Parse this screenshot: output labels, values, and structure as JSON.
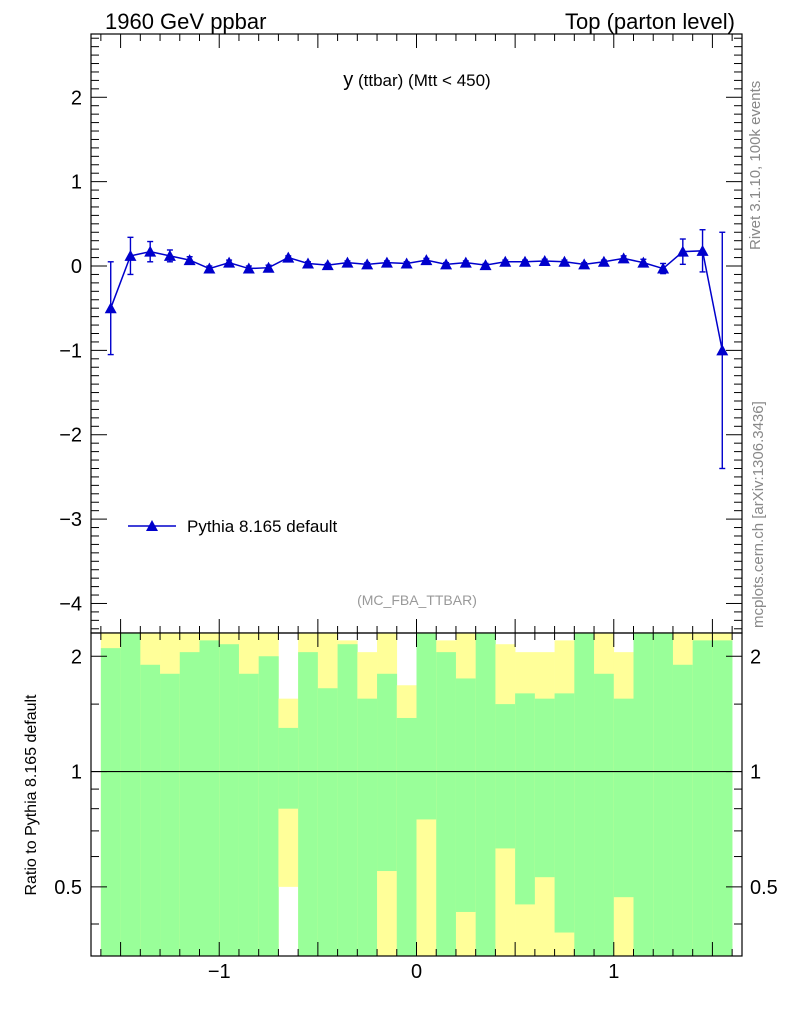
{
  "header": {
    "left": "1960 GeV ppbar",
    "right": "Top (parton level)"
  },
  "side_labels": {
    "rivet": "Rivet 3.1.10,  100k events",
    "mcplots": "mcplots.cern.ch [arXiv:1306.3436]"
  },
  "colors": {
    "series": "#0000cc",
    "band_inner": "#99ff99",
    "band_outer": "#ffff99",
    "axis": "#000000",
    "side_text": "#888888"
  },
  "chart_data": [
    {
      "type": "line",
      "title_main": "y",
      "title_rest": " (ttbar) (Mtt < 450)",
      "analysis": "(MC_FBA_TTBAR)",
      "xlim": [
        -1.65,
        1.65
      ],
      "ylim": [
        -4.35,
        2.75
      ],
      "yticks": [
        -4,
        -3,
        -2,
        -1,
        0,
        1,
        2
      ],
      "ytick_labels": [
        "−4",
        "−3",
        "−2",
        "−1",
        "0",
        "1",
        "2"
      ],
      "legend": "Pythia 8.165 default",
      "series": [
        {
          "name": "Pythia 8.165 default",
          "x": [
            -1.55,
            -1.45,
            -1.35,
            -1.25,
            -1.15,
            -1.05,
            -0.95,
            -0.85,
            -0.75,
            -0.65,
            -0.55,
            -0.45,
            -0.35,
            -0.25,
            -0.15,
            -0.05,
            0.05,
            0.15,
            0.25,
            0.35,
            0.45,
            0.55,
            0.65,
            0.75,
            0.85,
            0.95,
            1.05,
            1.15,
            1.25,
            1.35,
            1.45,
            1.55
          ],
          "y": [
            -0.5,
            0.12,
            0.17,
            0.12,
            0.07,
            -0.03,
            0.04,
            -0.03,
            -0.02,
            0.1,
            0.03,
            0.01,
            0.04,
            0.02,
            0.04,
            0.03,
            0.07,
            0.02,
            0.04,
            0.01,
            0.05,
            0.05,
            0.06,
            0.05,
            0.02,
            0.05,
            0.09,
            0.04,
            -0.03,
            0.17,
            0.18,
            -1.0
          ],
          "yerr": [
            0.55,
            0.22,
            0.12,
            0.07,
            0.04,
            0.03,
            0.03,
            0.03,
            0.03,
            0.02,
            0.02,
            0.02,
            0.02,
            0.02,
            0.02,
            0.02,
            0.02,
            0.02,
            0.02,
            0.02,
            0.02,
            0.02,
            0.02,
            0.02,
            0.02,
            0.02,
            0.03,
            0.04,
            0.06,
            0.15,
            0.25,
            1.4
          ]
        }
      ]
    },
    {
      "type": "area",
      "ylabel": "Ratio to Pythia 8.165 default",
      "xlim": [
        -1.65,
        1.65
      ],
      "ylim": [
        0.33,
        2.3
      ],
      "yscale": "log",
      "reference": 1,
      "xticks": [
        -1,
        0,
        1
      ],
      "xtick_labels": [
        "−1",
        "0",
        "1"
      ],
      "yticks": [
        0.5,
        1,
        2
      ],
      "ytick_labels": [
        "0.5",
        "1",
        "2"
      ],
      "bins": {
        "lo": [
          -1.6,
          -1.5,
          -1.4,
          -1.3,
          -1.2,
          -1.1,
          -1.0,
          -0.9,
          -0.8,
          -0.7,
          -0.6,
          -0.5,
          -0.4,
          -0.3,
          -0.2,
          -0.1,
          0.0,
          0.1,
          0.2,
          0.3,
          0.4,
          0.5,
          0.6,
          0.7,
          0.8,
          0.9,
          1.0,
          1.1,
          1.2,
          1.3,
          1.4,
          1.5
        ],
        "hi": [
          -1.5,
          -1.4,
          -1.3,
          -1.2,
          -1.1,
          -1.0,
          -0.9,
          -0.8,
          -0.7,
          -0.6,
          -0.5,
          -0.4,
          -0.3,
          -0.2,
          -0.1,
          0.0,
          0.1,
          0.2,
          0.3,
          0.4,
          0.5,
          0.6,
          0.7,
          0.8,
          0.9,
          1.0,
          1.1,
          1.2,
          1.3,
          1.4,
          1.5,
          1.6
        ],
        "inner_lo": [
          0.33,
          0.33,
          0.33,
          0.33,
          0.33,
          0.33,
          0.33,
          0.33,
          0.33,
          0.8,
          0.33,
          0.33,
          0.33,
          0.33,
          0.55,
          0.33,
          0.75,
          0.33,
          0.43,
          0.33,
          0.63,
          0.45,
          0.53,
          0.38,
          0.33,
          0.33,
          0.47,
          0.33,
          0.33,
          0.33,
          0.33,
          0.33
        ],
        "inner_hi": [
          2.1,
          2.3,
          1.9,
          1.8,
          2.05,
          2.2,
          2.15,
          1.8,
          2.0,
          1.3,
          2.05,
          1.65,
          2.15,
          1.55,
          1.8,
          1.38,
          2.3,
          2.05,
          1.75,
          2.3,
          1.5,
          1.6,
          1.55,
          1.6,
          2.3,
          1.8,
          1.55,
          2.3,
          2.3,
          1.9,
          2.2,
          2.2
        ],
        "outer_lo": [
          0.33,
          0.33,
          0.33,
          0.33,
          0.33,
          0.33,
          0.33,
          0.33,
          0.33,
          0.5,
          0.33,
          0.33,
          0.33,
          0.33,
          0.33,
          0.33,
          0.33,
          0.33,
          0.33,
          0.33,
          0.33,
          0.33,
          0.33,
          0.33,
          0.33,
          0.33,
          0.33,
          0.33,
          0.33,
          0.33,
          0.33,
          0.33
        ],
        "outer_hi": [
          2.3,
          2.3,
          2.3,
          2.3,
          2.3,
          2.3,
          2.3,
          2.3,
          2.3,
          1.55,
          2.3,
          2.3,
          2.2,
          2.05,
          2.3,
          1.68,
          2.3,
          2.2,
          2.3,
          2.3,
          2.15,
          2.05,
          2.05,
          2.2,
          2.3,
          2.3,
          2.05,
          2.3,
          2.3,
          2.3,
          2.3,
          2.3
        ]
      }
    }
  ]
}
